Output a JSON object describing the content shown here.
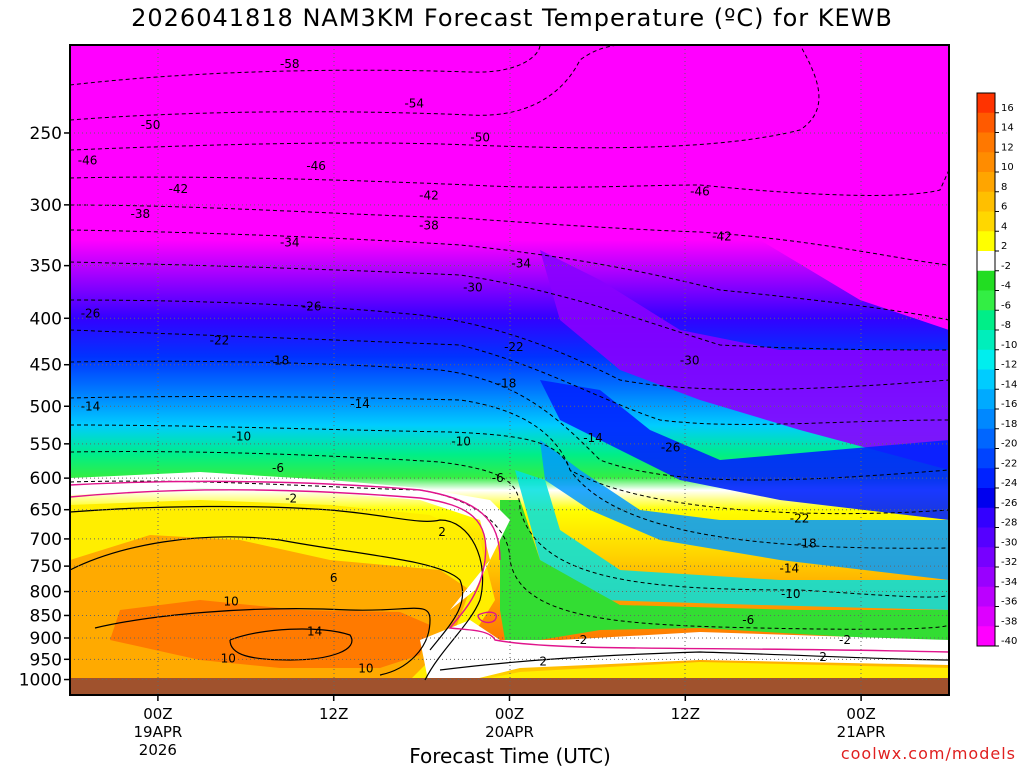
{
  "title": "2026041818 NAM3KM Forecast Temperature (ºC) for KEWB",
  "credit": "coolwx.com/models",
  "colors": {
    "ground": "#a0522d",
    "freezing_line": "#e0148c"
  },
  "chart_data": {
    "type": "heatmap",
    "title": "2026041818 NAM3KM Forecast Temperature (ºC) for KEWB",
    "xlabel": "Forecast Time (UTC)",
    "ylabel": "",
    "y_axis": {
      "scale": "log",
      "inverted": true,
      "ticks": [
        250,
        300,
        350,
        400,
        450,
        500,
        550,
        600,
        650,
        700,
        750,
        800,
        850,
        900,
        950,
        1000
      ],
      "range": [
        200,
        1040
      ]
    },
    "x_axis": {
      "range_hours": [
        -6,
        54
      ],
      "ticks": [
        {
          "hour": 0,
          "lines": [
            "00Z",
            "19APR",
            "2026"
          ]
        },
        {
          "hour": 12,
          "lines": [
            "12Z"
          ]
        },
        {
          "hour": 24,
          "lines": [
            "00Z",
            "20APR"
          ]
        },
        {
          "hour": 36,
          "lines": [
            "12Z"
          ]
        },
        {
          "hour": 48,
          "lines": [
            "00Z",
            "21APR"
          ]
        }
      ]
    },
    "grid": true,
    "colorbar": {
      "position": "right",
      "labels": [
        16,
        14,
        12,
        10,
        8,
        6,
        4,
        2,
        -2,
        -4,
        -6,
        -8,
        -10,
        -12,
        -14,
        -16,
        -18,
        -20,
        -22,
        -24,
        -26,
        -28,
        -30,
        -32,
        -34,
        -36,
        -38,
        -40
      ],
      "colors": [
        "#ff3300",
        "#ff5a00",
        "#ff7800",
        "#ff8c00",
        "#ffa500",
        "#ffbf00",
        "#ffd700",
        "#ffff00",
        "#ffffff",
        "#22dd22",
        "#33ee44",
        "#00ee88",
        "#00eebb",
        "#00eeee",
        "#00ccff",
        "#00aaff",
        "#0088ff",
        "#0066ff",
        "#0044ff",
        "#0022ff",
        "#0000ee",
        "#3300ff",
        "#5500ff",
        "#7700ff",
        "#9900ff",
        "#bb00ff",
        "#dd00ff",
        "#ff00ff"
      ]
    },
    "contour_labels": [
      {
        "value": "-58",
        "hour": 9,
        "p": 210
      },
      {
        "value": "-54",
        "hour": 17.5,
        "p": 232
      },
      {
        "value": "-50",
        "hour": -0.5,
        "p": 245
      },
      {
        "value": "-50",
        "hour": 22,
        "p": 253
      },
      {
        "value": "-46",
        "hour": -4.8,
        "p": 268
      },
      {
        "value": "-46",
        "hour": 10.8,
        "p": 272
      },
      {
        "value": "-46",
        "hour": 37,
        "p": 290
      },
      {
        "value": "-42",
        "hour": 1.4,
        "p": 288
      },
      {
        "value": "-42",
        "hour": 18.5,
        "p": 293
      },
      {
        "value": "-42",
        "hour": 38.5,
        "p": 325
      },
      {
        "value": "-38",
        "hour": -1.2,
        "p": 307
      },
      {
        "value": "-38",
        "hour": 18.5,
        "p": 316
      },
      {
        "value": "-34",
        "hour": 9,
        "p": 330
      },
      {
        "value": "-34",
        "hour": 24.8,
        "p": 348
      },
      {
        "value": "-30",
        "hour": 21.5,
        "p": 370
      },
      {
        "value": "-30",
        "hour": 36.3,
        "p": 445
      },
      {
        "value": "-26",
        "hour": -4.6,
        "p": 395
      },
      {
        "value": "-26",
        "hour": 10.5,
        "p": 388
      },
      {
        "value": "-26",
        "hour": 35,
        "p": 555
      },
      {
        "value": "-22",
        "hour": 4.2,
        "p": 423
      },
      {
        "value": "-22",
        "hour": 24.3,
        "p": 430
      },
      {
        "value": "-22",
        "hour": 43.8,
        "p": 665
      },
      {
        "value": "-18",
        "hour": 8.3,
        "p": 445
      },
      {
        "value": "-18",
        "hour": 23.8,
        "p": 472
      },
      {
        "value": "-18",
        "hour": 44.3,
        "p": 708
      },
      {
        "value": "-14",
        "hour": -4.6,
        "p": 500
      },
      {
        "value": "-14",
        "hour": 13.8,
        "p": 497
      },
      {
        "value": "-14",
        "hour": 29.7,
        "p": 542
      },
      {
        "value": "-14",
        "hour": 43.1,
        "p": 755
      },
      {
        "value": "-10",
        "hour": 5.7,
        "p": 540
      },
      {
        "value": "-10",
        "hour": 20.7,
        "p": 547
      },
      {
        "value": "-10",
        "hour": 43.2,
        "p": 805
      },
      {
        "value": "-6",
        "hour": 8.2,
        "p": 585
      },
      {
        "value": "-6",
        "hour": 23.2,
        "p": 600
      },
      {
        "value": "-6",
        "hour": 40.3,
        "p": 860
      },
      {
        "value": "-2",
        "hour": 9.1,
        "p": 632
      },
      {
        "value": "-2",
        "hour": 28.9,
        "p": 905
      },
      {
        "value": "-2",
        "hour": 46.9,
        "p": 905
      },
      {
        "value": "2",
        "hour": 19.4,
        "p": 688
      },
      {
        "value": "2",
        "hour": 26.3,
        "p": 955
      },
      {
        "value": "2",
        "hour": 45.4,
        "p": 945
      },
      {
        "value": "6",
        "hour": 12,
        "p": 773
      },
      {
        "value": "10",
        "hour": 5,
        "p": 820
      },
      {
        "value": "10",
        "hour": 4.8,
        "p": 948
      },
      {
        "value": "10",
        "hour": 14.2,
        "p": 972
      },
      {
        "value": "14",
        "hour": 10.7,
        "p": 885
      }
    ]
  }
}
